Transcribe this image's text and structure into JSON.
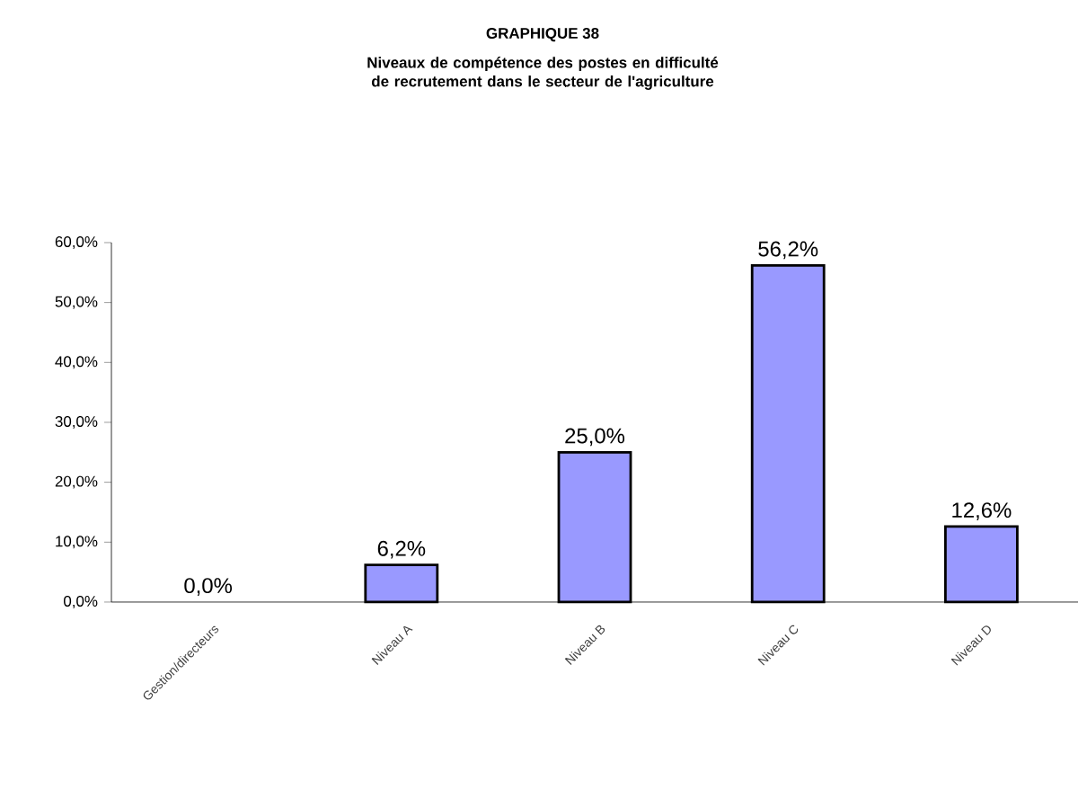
{
  "chart_data": {
    "type": "bar",
    "title": "GRAPHIQUE 38",
    "subtitle": "Niveaux de compétence des postes en difficulté de recrutement dans le secteur de l'agriculture",
    "categories": [
      "Gestion/directeurs",
      "Niveau A",
      "Niveau B",
      "Niveau C",
      "Niveau D"
    ],
    "values": [
      0,
      6.2,
      25.0,
      56.2,
      12.6
    ],
    "value_labels": [
      "0,0%",
      "6,2%",
      "25,0%",
      "56,2%",
      "12,6%"
    ],
    "color": "#9999ff",
    "ylim": [
      0,
      60
    ],
    "yticks": [
      {
        "value": 0,
        "label": "0,0%"
      },
      {
        "value": 10,
        "label": "10,0%"
      },
      {
        "value": 20,
        "label": "20,0%"
      },
      {
        "value": 30,
        "label": "30,0%"
      },
      {
        "value": 40,
        "label": "40,0%"
      },
      {
        "value": 50,
        "label": "50,0%"
      },
      {
        "value": 60,
        "label": "60,0%"
      }
    ],
    "grid": false
  }
}
